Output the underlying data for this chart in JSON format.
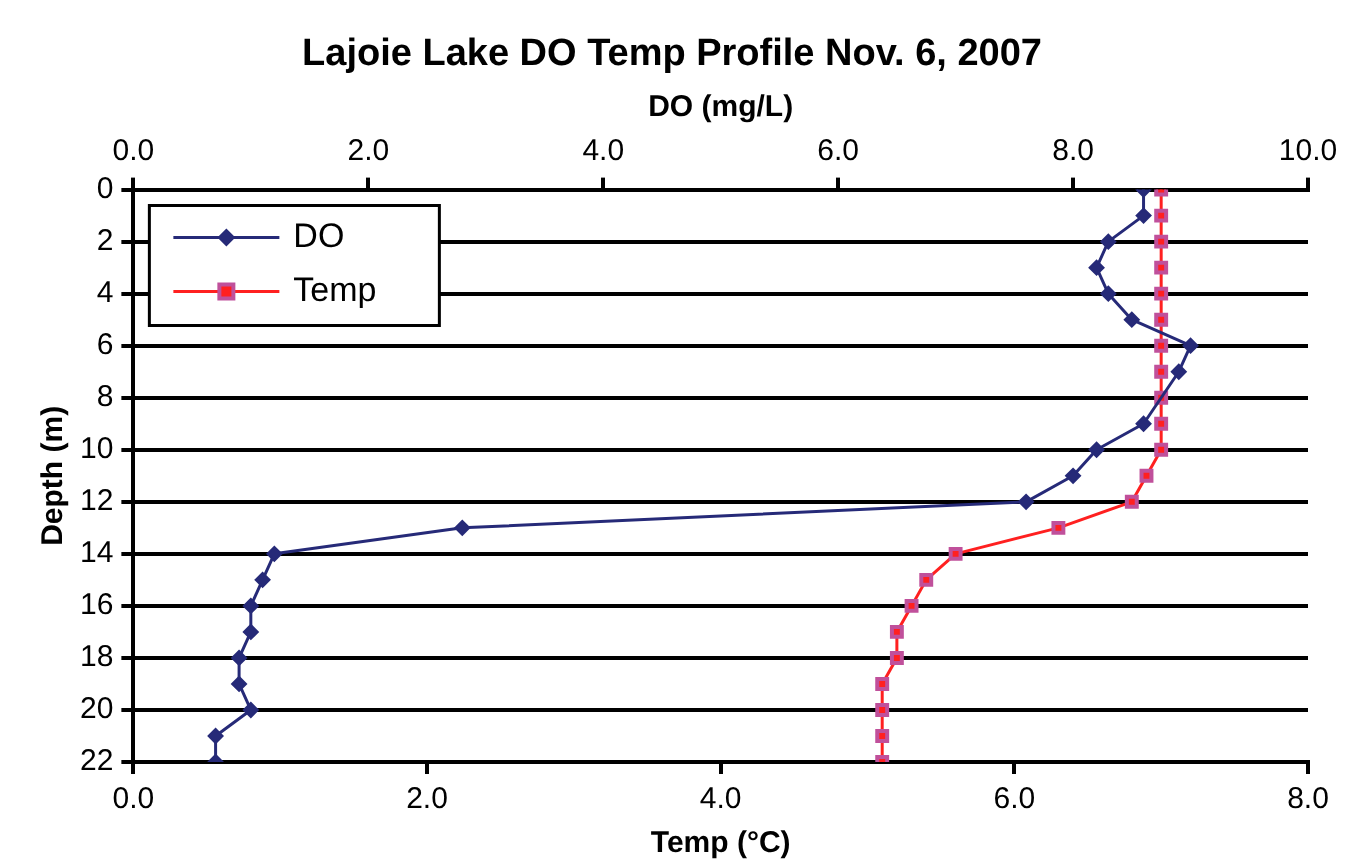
{
  "chart_data": {
    "type": "line",
    "orientation": "horizontal",
    "title": "Lajoie Lake DO Temp Profile Nov. 6, 2007",
    "x2label": "DO (mg/L)",
    "xlabel": "Temp (°C)",
    "ylabel": "Depth (m)",
    "xlim": [
      0,
      8
    ],
    "xticks": [
      {
        "value": 0,
        "label": "0.0"
      },
      {
        "value": 2,
        "label": "2.0"
      },
      {
        "value": 4,
        "label": "4.0"
      },
      {
        "value": 6,
        "label": "6.0"
      },
      {
        "value": 8,
        "label": "8.0"
      }
    ],
    "x2lim": [
      0,
      10
    ],
    "x2ticks": [
      {
        "value": 0,
        "label": "0.0"
      },
      {
        "value": 2,
        "label": "2.0"
      },
      {
        "value": 4,
        "label": "4.0"
      },
      {
        "value": 6,
        "label": "6.0"
      },
      {
        "value": 8,
        "label": "8.0"
      },
      {
        "value": 10,
        "label": "10.0"
      }
    ],
    "ylim": [
      22,
      0
    ],
    "yticks": [
      0,
      2,
      4,
      6,
      8,
      10,
      12,
      14,
      16,
      18,
      20,
      22
    ],
    "grid": "y",
    "legend": "top left",
    "line_style": "solid",
    "series": [
      {
        "name": "DO",
        "color": "#262a78",
        "axis": "x2",
        "marker": "diamond",
        "x": [
          0,
          1,
          2,
          3,
          4,
          5,
          6,
          7,
          9,
          10,
          11,
          12,
          13,
          14,
          15,
          16,
          17,
          18,
          19,
          20,
          21,
          22
        ],
        "values": [
          8.6,
          8.6,
          8.3,
          8.2,
          8.3,
          8.5,
          9.0,
          8.9,
          8.6,
          8.2,
          8.0,
          7.6,
          2.8,
          1.2,
          1.1,
          1.0,
          1.0,
          0.9,
          0.9,
          1.0,
          0.7,
          0.7
        ]
      },
      {
        "name": "Temp",
        "color": "#ff2020",
        "marker": "square",
        "x": [
          0,
          1,
          2,
          3,
          4,
          5,
          6,
          7,
          8,
          9,
          10,
          11,
          12,
          13,
          14,
          15,
          16,
          17,
          18,
          19,
          20,
          21,
          22
        ],
        "values": [
          7.0,
          7.0,
          7.0,
          7.0,
          7.0,
          7.0,
          7.0,
          7.0,
          7.0,
          7.0,
          7.0,
          6.9,
          6.8,
          6.3,
          5.6,
          5.4,
          5.3,
          5.2,
          5.2,
          5.1,
          5.1,
          5.1,
          5.1
        ]
      }
    ]
  }
}
